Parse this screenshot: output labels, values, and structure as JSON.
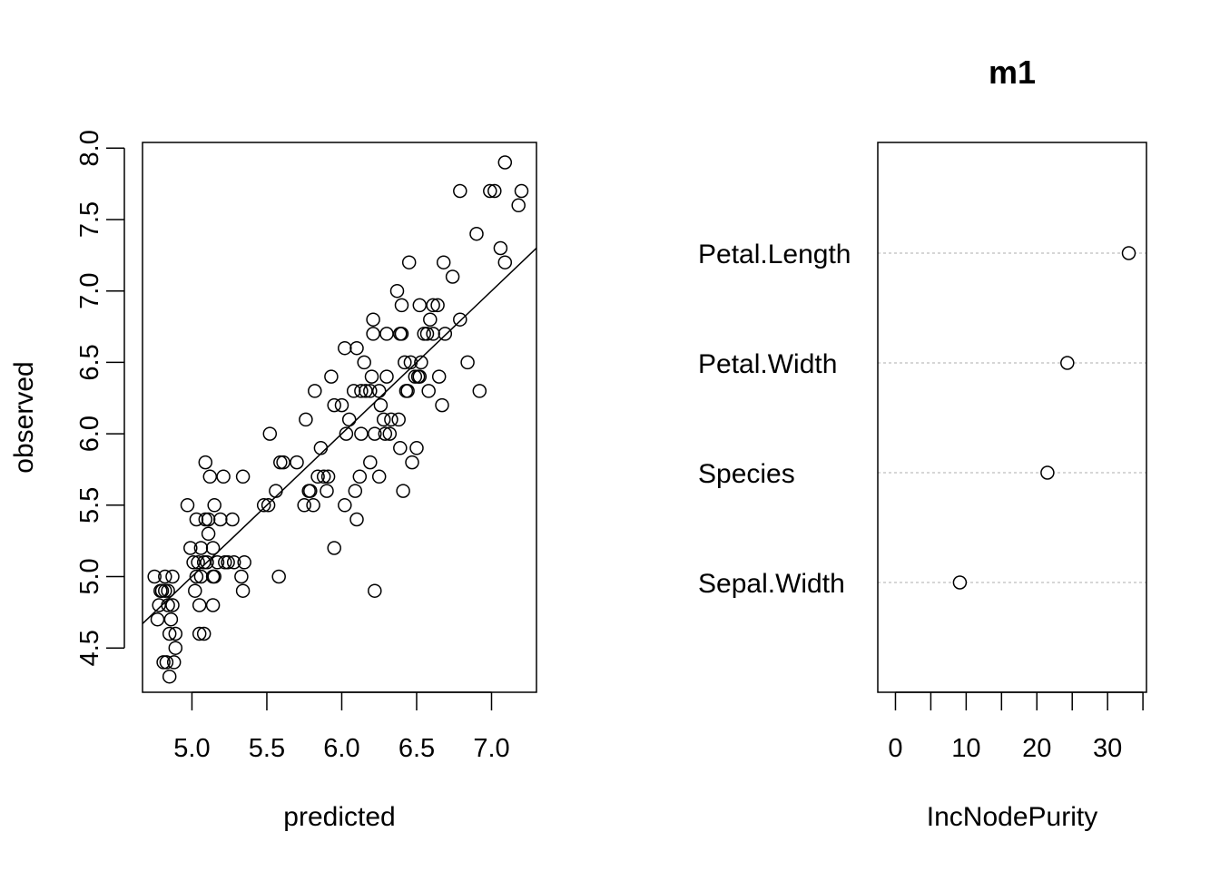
{
  "chart_data": [
    {
      "type": "scatter",
      "title": "",
      "xlabel": "predicted",
      "ylabel": "observed",
      "xlim": [
        4.67,
        7.3
      ],
      "ylim": [
        4.19,
        8.04
      ],
      "xticks": [
        "5.0",
        "5.5",
        "6.0",
        "6.5",
        "7.0"
      ],
      "yticks": [
        "4.5",
        "5.0",
        "5.5",
        "6.0",
        "6.5",
        "7.0",
        "7.5",
        "8.0"
      ],
      "reference_line": {
        "type": "identity",
        "intercept": 0,
        "slope": 1
      },
      "points": [
        [
          4.75,
          5.0
        ],
        [
          4.78,
          4.8
        ],
        [
          4.77,
          4.7
        ],
        [
          4.79,
          4.9
        ],
        [
          4.8,
          4.9
        ],
        [
          4.81,
          4.4
        ],
        [
          4.82,
          5.0
        ],
        [
          4.82,
          4.9
        ],
        [
          4.83,
          4.4
        ],
        [
          4.84,
          4.8
        ],
        [
          4.84,
          4.9
        ],
        [
          4.85,
          4.6
        ],
        [
          4.85,
          4.3
        ],
        [
          4.86,
          4.7
        ],
        [
          4.87,
          4.8
        ],
        [
          4.87,
          5.0
        ],
        [
          4.88,
          4.4
        ],
        [
          4.89,
          4.5
        ],
        [
          4.89,
          4.6
        ],
        [
          4.97,
          5.5
        ],
        [
          4.99,
          5.2
        ],
        [
          5.01,
          5.1
        ],
        [
          5.02,
          4.9
        ],
        [
          5.03,
          5.0
        ],
        [
          5.03,
          5.4
        ],
        [
          5.04,
          5.1
        ],
        [
          5.05,
          4.8
        ],
        [
          5.05,
          4.6
        ],
        [
          5.06,
          5.0
        ],
        [
          5.06,
          5.2
        ],
        [
          5.08,
          5.1
        ],
        [
          5.08,
          4.6
        ],
        [
          5.09,
          5.4
        ],
        [
          5.09,
          5.8
        ],
        [
          5.1,
          5.1
        ],
        [
          5.11,
          5.4
        ],
        [
          5.11,
          5.3
        ],
        [
          5.12,
          5.7
        ],
        [
          5.14,
          5.0
        ],
        [
          5.14,
          4.8
        ],
        [
          5.14,
          5.2
        ],
        [
          5.15,
          5.0
        ],
        [
          5.15,
          5.5
        ],
        [
          5.17,
          5.1
        ],
        [
          5.19,
          5.4
        ],
        [
          5.21,
          5.7
        ],
        [
          5.22,
          5.1
        ],
        [
          5.24,
          5.1
        ],
        [
          5.27,
          5.4
        ],
        [
          5.28,
          5.1
        ],
        [
          5.33,
          5.0
        ],
        [
          5.34,
          4.9
        ],
        [
          5.34,
          5.7
        ],
        [
          5.35,
          5.1
        ],
        [
          5.48,
          5.5
        ],
        [
          5.51,
          5.5
        ],
        [
          5.52,
          6.0
        ],
        [
          5.56,
          5.6
        ],
        [
          5.58,
          5.0
        ],
        [
          5.59,
          5.8
        ],
        [
          5.61,
          5.8
        ],
        [
          5.7,
          5.8
        ],
        [
          5.75,
          5.5
        ],
        [
          5.76,
          6.1
        ],
        [
          5.78,
          5.6
        ],
        [
          5.79,
          5.6
        ],
        [
          5.81,
          5.5
        ],
        [
          5.82,
          6.3
        ],
        [
          5.84,
          5.7
        ],
        [
          5.86,
          5.9
        ],
        [
          5.88,
          5.7
        ],
        [
          5.9,
          5.6
        ],
        [
          5.91,
          5.7
        ],
        [
          5.93,
          6.4
        ],
        [
          5.95,
          6.2
        ],
        [
          5.95,
          5.2
        ],
        [
          6.0,
          6.2
        ],
        [
          6.02,
          6.6
        ],
        [
          6.02,
          5.5
        ],
        [
          6.03,
          6.0
        ],
        [
          6.05,
          6.1
        ],
        [
          6.08,
          6.3
        ],
        [
          6.09,
          5.6
        ],
        [
          6.1,
          6.6
        ],
        [
          6.1,
          5.4
        ],
        [
          6.12,
          5.7
        ],
        [
          6.13,
          6.3
        ],
        [
          6.13,
          6.0
        ],
        [
          6.15,
          6.5
        ],
        [
          6.16,
          6.3
        ],
        [
          6.19,
          5.8
        ],
        [
          6.19,
          6.3
        ],
        [
          6.2,
          6.4
        ],
        [
          6.21,
          6.8
        ],
        [
          6.21,
          6.7
        ],
        [
          6.22,
          6.0
        ],
        [
          6.22,
          4.9
        ],
        [
          6.25,
          6.3
        ],
        [
          6.25,
          5.7
        ],
        [
          6.26,
          6.2
        ],
        [
          6.28,
          6.1
        ],
        [
          6.29,
          6.0
        ],
        [
          6.3,
          6.7
        ],
        [
          6.3,
          6.4
        ],
        [
          6.32,
          6.0
        ],
        [
          6.33,
          6.1
        ],
        [
          6.37,
          7.0
        ],
        [
          6.38,
          6.1
        ],
        [
          6.39,
          6.7
        ],
        [
          6.39,
          5.9
        ],
        [
          6.4,
          6.9
        ],
        [
          6.4,
          6.7
        ],
        [
          6.41,
          5.6
        ],
        [
          6.42,
          6.5
        ],
        [
          6.43,
          6.3
        ],
        [
          6.44,
          6.3
        ],
        [
          6.45,
          7.2
        ],
        [
          6.46,
          6.5
        ],
        [
          6.47,
          5.8
        ],
        [
          6.49,
          6.4
        ],
        [
          6.5,
          5.9
        ],
        [
          6.51,
          6.4
        ],
        [
          6.52,
          6.9
        ],
        [
          6.52,
          6.4
        ],
        [
          6.53,
          6.5
        ],
        [
          6.55,
          6.7
        ],
        [
          6.57,
          6.7
        ],
        [
          6.58,
          6.3
        ],
        [
          6.59,
          6.8
        ],
        [
          6.61,
          6.9
        ],
        [
          6.61,
          6.7
        ],
        [
          6.64,
          6.9
        ],
        [
          6.65,
          6.4
        ],
        [
          6.67,
          6.2
        ],
        [
          6.68,
          7.2
        ],
        [
          6.69,
          6.7
        ],
        [
          6.74,
          7.1
        ],
        [
          6.79,
          7.7
        ],
        [
          6.79,
          6.8
        ],
        [
          6.84,
          6.5
        ],
        [
          6.9,
          7.4
        ],
        [
          6.92,
          6.3
        ],
        [
          6.99,
          7.7
        ],
        [
          7.02,
          7.7
        ],
        [
          7.06,
          7.3
        ],
        [
          7.09,
          7.9
        ],
        [
          7.09,
          7.2
        ],
        [
          7.18,
          7.6
        ],
        [
          7.2,
          7.7
        ]
      ]
    },
    {
      "type": "dotchart",
      "title": "m1",
      "xlabel": "IncNodePurity",
      "ylabel": "",
      "xlim": [
        -2.5,
        35.5
      ],
      "xticks": [
        "0",
        "10",
        "20",
        "30"
      ],
      "categories": [
        "Petal.Length",
        "Petal.Width",
        "Species",
        "Sepal.Width"
      ],
      "values": [
        33.0,
        24.3,
        21.5,
        9.1
      ]
    }
  ]
}
